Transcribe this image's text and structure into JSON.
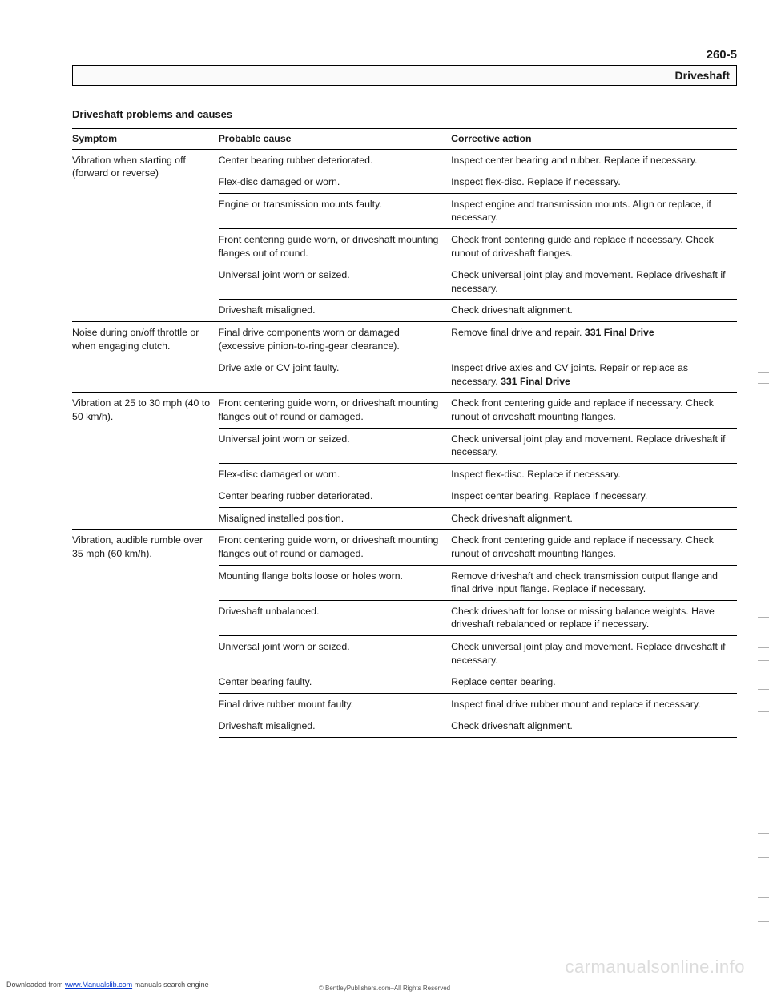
{
  "page_number": "260-5",
  "header_title": "Driveshaft",
  "section_title": "Driveshaft problems and causes",
  "table": {
    "headers": [
      "Symptom",
      "Probable cause",
      "Corrective action"
    ],
    "groups": [
      {
        "symptom": "Vibration when starting off (forward or reverse)",
        "rows": [
          {
            "cause": "Center bearing rubber deteriorated.",
            "action": "Inspect center bearing and rubber. Replace if necessary."
          },
          {
            "cause": "Flex-disc damaged or worn.",
            "action": "Inspect flex-disc. Replace if necessary."
          },
          {
            "cause": "Engine or transmission mounts faulty.",
            "action": "Inspect engine and transmission mounts. Align or replace, if necessary."
          },
          {
            "cause": "Front centering guide worn, or driveshaft mounting flanges out of round.",
            "action": "Check front centering guide and replace if necessary. Check runout of driveshaft flanges."
          },
          {
            "cause": "Universal joint worn or seized.",
            "action": "Check universal joint play and movement. Replace driveshaft if necessary."
          },
          {
            "cause": "Driveshaft misaligned.",
            "action": "Check driveshaft alignment."
          }
        ]
      },
      {
        "symptom": "Noise during on/off throttle or when engaging clutch.",
        "rows": [
          {
            "cause": "Final drive components worn or damaged (excessive pinion-to-ring-gear clearance).",
            "action_html": "Remove final drive and repair. <span class=\"bold\">331 Final Drive</span>"
          },
          {
            "cause": "Drive axle or CV joint faulty.",
            "action_html": "Inspect drive axles and CV joints. Repair or replace as necessary. <span class=\"bold\">331 Final Drive</span>"
          }
        ]
      },
      {
        "symptom": "Vibration at 25 to 30 mph (40 to 50 km/h).",
        "rows": [
          {
            "cause": "Front centering guide worn, or driveshaft mounting flanges out of round or damaged.",
            "action": "Check front centering guide and replace if necessary. Check runout of driveshaft mounting flanges."
          },
          {
            "cause": "Universal joint worn or seized.",
            "action": "Check universal joint play and movement. Replace driveshaft if necessary."
          },
          {
            "cause": "Flex-disc damaged or worn.",
            "action": "Inspect flex-disc. Replace if necessary."
          },
          {
            "cause": "Center bearing rubber deteriorated.",
            "action": "Inspect center bearing. Replace if necessary."
          },
          {
            "cause": "Misaligned installed position.",
            "action": "Check driveshaft alignment."
          }
        ]
      },
      {
        "symptom": "Vibration, audible rumble over 35 mph (60 km/h).",
        "rows": [
          {
            "cause": "Front centering guide worn, or driveshaft mounting flanges out of round or damaged.",
            "action": "Check front centering guide and replace if necessary. Check runout of driveshaft mounting flanges."
          },
          {
            "cause": "Mounting flange bolts loose or holes worn.",
            "action": "Remove driveshaft and check transmission output flange and final drive input flange. Replace if necessary."
          },
          {
            "cause": "Driveshaft unbalanced.",
            "action": "Check driveshaft for loose or missing balance weights. Have driveshaft rebalanced or replace if necessary."
          },
          {
            "cause": "Universal joint worn or seized.",
            "action": "Check universal joint play and movement. Replace driveshaft if necessary."
          },
          {
            "cause": "Center bearing faulty.",
            "action": "Replace center bearing."
          },
          {
            "cause": "Final drive rubber mount faulty.",
            "action": "Inspect final drive rubber mount and replace if necessary."
          },
          {
            "cause": "Driveshaft misaligned.",
            "action": "Check driveshaft alignment."
          }
        ]
      }
    ]
  },
  "watermark": "carmanualsonline.info",
  "footer_left_prefix": "Downloaded from ",
  "footer_left_link": "www.Manualslib.com",
  "footer_left_suffix": " manuals search engine",
  "footer_center": "© BentleyPublishers.com–All Rights Reserved",
  "right_tick_positions": [
    450,
    464,
    478,
    770,
    808,
    824,
    860,
    888,
    1040,
    1070,
    1120,
    1150
  ]
}
